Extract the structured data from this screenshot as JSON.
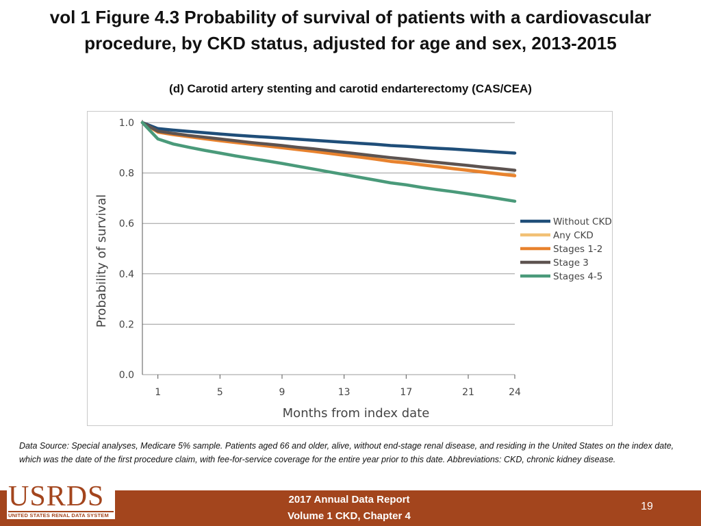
{
  "slide": {
    "title": "vol 1 Figure 4.3 Probability of survival of patients with a cardiovascular procedure, by CKD status, adjusted for age and sex, 2013-2015",
    "subtitle": "(d) Carotid artery stenting and carotid endarterectomy (CAS/CEA)"
  },
  "chart_data": {
    "type": "line",
    "title": "(d) Carotid artery stenting and carotid endarterectomy (CAS/CEA)",
    "xlabel": "Months from index date",
    "ylabel": "Probability of survival",
    "xlim": [
      0,
      24
    ],
    "ylim": [
      0.0,
      1.0
    ],
    "x_ticks": [
      1,
      5,
      9,
      13,
      17,
      21,
      24
    ],
    "y_ticks": [
      0.0,
      0.2,
      0.4,
      0.6,
      0.8,
      1.0
    ],
    "y_tick_labels": [
      "0.0",
      "0.2",
      "0.4",
      "0.6",
      "0.8",
      "1.0"
    ],
    "grid": "horizontal",
    "legend_position": "right",
    "x": [
      0,
      1,
      2,
      3,
      4,
      5,
      6,
      7,
      8,
      9,
      10,
      11,
      12,
      13,
      14,
      15,
      16,
      17,
      18,
      19,
      20,
      21,
      22,
      23,
      24
    ],
    "series": [
      {
        "name": "Without CKD",
        "color": "#1f4e79",
        "values": [
          1.0,
          0.976,
          0.97,
          0.965,
          0.96,
          0.955,
          0.95,
          0.946,
          0.942,
          0.938,
          0.934,
          0.93,
          0.926,
          0.922,
          0.918,
          0.914,
          0.909,
          0.906,
          0.902,
          0.898,
          0.895,
          0.891,
          0.887,
          0.883,
          0.879
        ]
      },
      {
        "name": "Any CKD",
        "color": "#f2c075",
        "values": [
          1.0,
          0.965,
          0.955,
          0.947,
          0.939,
          0.931,
          0.924,
          0.917,
          0.91,
          0.903,
          0.896,
          0.889,
          0.881,
          0.873,
          0.866,
          0.858,
          0.849,
          0.843,
          0.835,
          0.828,
          0.82,
          0.813,
          0.806,
          0.799,
          0.792
        ]
      },
      {
        "name": "Stages 1-2",
        "color": "#e8822e",
        "values": [
          1.0,
          0.962,
          0.952,
          0.944,
          0.936,
          0.928,
          0.921,
          0.914,
          0.907,
          0.9,
          0.893,
          0.886,
          0.878,
          0.87,
          0.863,
          0.855,
          0.846,
          0.84,
          0.832,
          0.825,
          0.817,
          0.81,
          0.803,
          0.796,
          0.789
        ]
      },
      {
        "name": "Stage 3",
        "color": "#5d5350",
        "values": [
          1.0,
          0.966,
          0.957,
          0.949,
          0.942,
          0.935,
          0.928,
          0.921,
          0.915,
          0.909,
          0.902,
          0.896,
          0.889,
          0.882,
          0.875,
          0.868,
          0.861,
          0.855,
          0.848,
          0.842,
          0.836,
          0.83,
          0.823,
          0.817,
          0.811
        ]
      },
      {
        "name": "Stages 4-5",
        "color": "#4a9a7a",
        "values": [
          1.0,
          0.935,
          0.915,
          0.902,
          0.89,
          0.879,
          0.868,
          0.858,
          0.848,
          0.838,
          0.827,
          0.816,
          0.805,
          0.794,
          0.783,
          0.772,
          0.761,
          0.753,
          0.743,
          0.734,
          0.726,
          0.717,
          0.708,
          0.698,
          0.688
        ]
      }
    ]
  },
  "notes": {
    "data_source": "Data Source: Special analyses, Medicare 5% sample. Patients aged 66 and older, alive, without end-stage renal disease, and residing in the United States on the index date, which was the date of the first procedure claim, with fee-for-service coverage for the entire year prior to this date. Abbreviations: CKD, chronic kidney disease."
  },
  "footer": {
    "logo_text": "USRDS",
    "logo_subtext": "UNITED STATES RENAL DATA SYSTEM",
    "report_line1": "2017 Annual Data Report",
    "report_line2": "Volume 1 CKD, Chapter 4",
    "page_number": "19",
    "bar_color": "#a3451d"
  }
}
